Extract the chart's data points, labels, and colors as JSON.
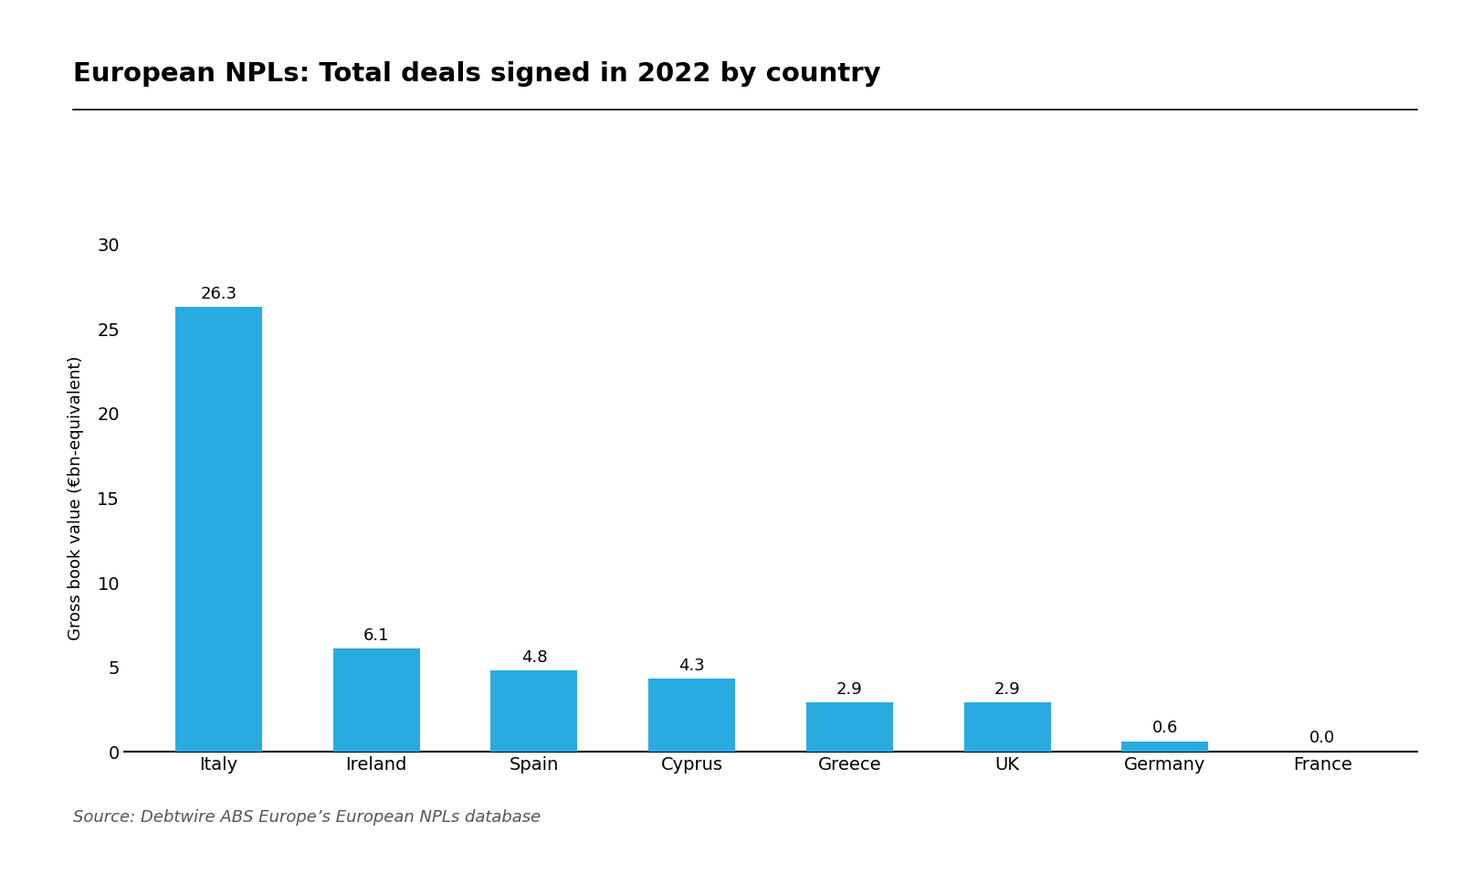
{
  "title": "European NPLs: Total deals signed in 2022 by country",
  "source_text": "Source: Debtwire ABS Europe’s European NPLs database",
  "categories": [
    "Italy",
    "Ireland",
    "Spain",
    "Cyprus",
    "Greece",
    "UK",
    "Germany",
    "France"
  ],
  "values": [
    26.3,
    6.1,
    4.8,
    4.3,
    2.9,
    2.9,
    0.6,
    0.0
  ],
  "bar_color": "#29ABE2",
  "ylabel": "Gross book value (€bn-equivalent)",
  "ylim": [
    0,
    30
  ],
  "yticks": [
    0,
    5,
    10,
    15,
    20,
    25,
    30
  ],
  "background_color": "#ffffff",
  "title_fontsize": 21,
  "tick_fontsize": 14,
  "source_fontsize": 13,
  "bar_label_fontsize": 13,
  "ylabel_fontsize": 13
}
